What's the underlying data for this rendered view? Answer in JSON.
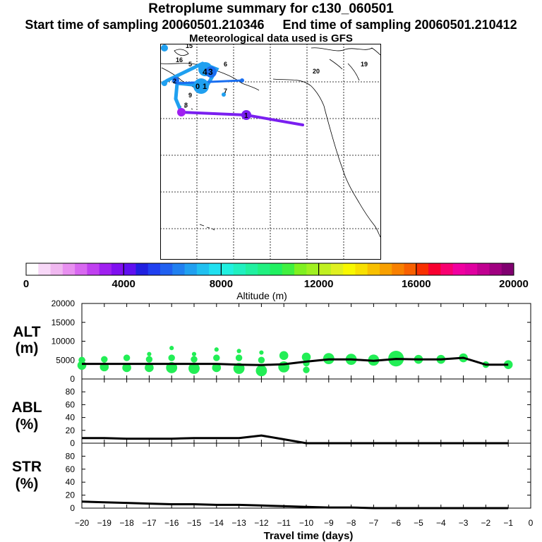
{
  "header": {
    "title": "Retroplume summary for c130_060501",
    "start_label": "Start time of sampling 20060501.210346",
    "end_label": "End time of sampling 20060501.210412",
    "met_label": "Meteorological data used is GFS"
  },
  "map": {
    "plume_labels": [
      "15",
      "16",
      "5",
      "6",
      "4",
      "3",
      "1",
      "2",
      "0",
      "7",
      "8",
      "9",
      "20",
      "19",
      "1"
    ],
    "line_colors": {
      "purple": "#7a1ff0",
      "blue": "#1a6ff0",
      "lightblue": "#1fa0f0"
    }
  },
  "colorbar": {
    "colors": [
      "#ffffff",
      "#f8d8f8",
      "#f0b8f0",
      "#e890f0",
      "#d868f0",
      "#c040f0",
      "#a020f0",
      "#8010f0",
      "#6010f0",
      "#2020e0",
      "#2040f0",
      "#2060f0",
      "#2080f0",
      "#20a0f0",
      "#20c0f0",
      "#20e0f0",
      "#20f0e0",
      "#20f0c0",
      "#20f0a0",
      "#20f080",
      "#20f060",
      "#40f040",
      "#80f020",
      "#a0f020",
      "#c0f020",
      "#e0f020",
      "#f8f800",
      "#f8e000",
      "#f8c000",
      "#f8a000",
      "#f88000",
      "#f86000",
      "#f83000",
      "#f80030",
      "#f80070",
      "#f000a0",
      "#e000a0",
      "#c00090",
      "#a00080",
      "#800070"
    ],
    "tick_labels": [
      "0",
      "4000",
      "8000",
      "12000",
      "16000",
      "20000"
    ],
    "xlabel": "Altitude (m)",
    "range": [
      0,
      20000
    ]
  },
  "chart_data": [
    {
      "type": "line",
      "panel": "alt",
      "title": "ALT (m)",
      "ylabel_line1": "ALT",
      "ylabel_line2": "(m)",
      "x": [
        -20,
        -19,
        -18,
        -17,
        -16,
        -15,
        -14,
        -13,
        -12,
        -11,
        -10,
        -9,
        -8,
        -7,
        -6,
        -5,
        -4,
        -3,
        -2,
        -1
      ],
      "values": [
        4000,
        4000,
        4000,
        4000,
        4000,
        4000,
        4000,
        3800,
        3700,
        3900,
        4600,
        5200,
        5200,
        4800,
        5300,
        5200,
        5200,
        5600,
        3800,
        3800
      ],
      "ylim": [
        0,
        20000
      ],
      "yticks": [
        0,
        5000,
        10000,
        15000,
        20000
      ],
      "plume_points": [
        {
          "x": -20,
          "y": 5000,
          "s": 2
        },
        {
          "x": -20,
          "y": 3600,
          "s": 3
        },
        {
          "x": -19,
          "y": 5200,
          "s": 2
        },
        {
          "x": -19,
          "y": 3200,
          "s": 3
        },
        {
          "x": -18,
          "y": 5600,
          "s": 2
        },
        {
          "x": -18,
          "y": 3000,
          "s": 3
        },
        {
          "x": -17,
          "y": 6600,
          "s": 1
        },
        {
          "x": -17,
          "y": 5200,
          "s": 2
        },
        {
          "x": -17,
          "y": 3000,
          "s": 3
        },
        {
          "x": -16,
          "y": 8200,
          "s": 1
        },
        {
          "x": -16,
          "y": 5600,
          "s": 2
        },
        {
          "x": -16,
          "y": 3000,
          "s": 4
        },
        {
          "x": -15,
          "y": 6600,
          "s": 1
        },
        {
          "x": -15,
          "y": 5200,
          "s": 2
        },
        {
          "x": -15,
          "y": 2800,
          "s": 4
        },
        {
          "x": -14,
          "y": 7800,
          "s": 1
        },
        {
          "x": -14,
          "y": 5600,
          "s": 2
        },
        {
          "x": -14,
          "y": 3000,
          "s": 3
        },
        {
          "x": -13,
          "y": 7400,
          "s": 1
        },
        {
          "x": -13,
          "y": 5600,
          "s": 2
        },
        {
          "x": -13,
          "y": 2800,
          "s": 4
        },
        {
          "x": -12,
          "y": 7000,
          "s": 1
        },
        {
          "x": -12,
          "y": 5000,
          "s": 2
        },
        {
          "x": -12,
          "y": 2200,
          "s": 4
        },
        {
          "x": -11,
          "y": 6200,
          "s": 3
        },
        {
          "x": -11,
          "y": 3200,
          "s": 4
        },
        {
          "x": -10,
          "y": 5800,
          "s": 3
        },
        {
          "x": -10,
          "y": 4200,
          "s": 2
        },
        {
          "x": -10,
          "y": 2400,
          "s": 2
        },
        {
          "x": -9,
          "y": 5400,
          "s": 4
        },
        {
          "x": -8,
          "y": 5200,
          "s": 4
        },
        {
          "x": -7,
          "y": 5000,
          "s": 4
        },
        {
          "x": -6,
          "y": 5400,
          "s": 6
        },
        {
          "x": -5,
          "y": 5200,
          "s": 3
        },
        {
          "x": -4,
          "y": 5200,
          "s": 3
        },
        {
          "x": -3,
          "y": 5600,
          "s": 3
        },
        {
          "x": -2,
          "y": 3800,
          "s": 2
        },
        {
          "x": -1,
          "y": 3800,
          "s": 3
        }
      ]
    },
    {
      "type": "line",
      "panel": "abl",
      "title": "ABL (%)",
      "ylabel_line1": "ABL",
      "ylabel_line2": "(%)",
      "x": [
        -20,
        -19,
        -18,
        -17,
        -16,
        -15,
        -14,
        -13,
        -12,
        -11,
        -10,
        -9,
        -8,
        -7,
        -6,
        -5,
        -4,
        -3,
        -2,
        -1
      ],
      "values": [
        8,
        8,
        7,
        7,
        7,
        8,
        8,
        8,
        12,
        6,
        0,
        0,
        0,
        0,
        0,
        0,
        0,
        0,
        0,
        0
      ],
      "ylim": [
        0,
        100
      ],
      "yticks": [
        0,
        20,
        40,
        60,
        80
      ]
    },
    {
      "type": "line",
      "panel": "str",
      "title": "STR (%)",
      "ylabel_line1": "STR",
      "ylabel_line2": "(%)",
      "x": [
        -20,
        -19,
        -18,
        -17,
        -16,
        -15,
        -14,
        -13,
        -12,
        -11,
        -10,
        -9,
        -8,
        -7,
        -6,
        -5,
        -4,
        -3,
        -2,
        -1
      ],
      "values": [
        10,
        9,
        8,
        7,
        6,
        6,
        5,
        5,
        4,
        3,
        2,
        1,
        1,
        0,
        0,
        0,
        0,
        0,
        0,
        0
      ],
      "ylim": [
        0,
        100
      ],
      "yticks": [
        0,
        20,
        40,
        60,
        80
      ]
    }
  ],
  "xaxis": {
    "xlabel": "Travel time (days)",
    "ticks": [
      -20,
      -19,
      -18,
      -17,
      -16,
      -15,
      -14,
      -13,
      -12,
      -11,
      -10,
      -9,
      -8,
      -7,
      -6,
      -5,
      -4,
      -3,
      -2,
      -1,
      0
    ],
    "tick_labels": [
      "−20",
      "−19",
      "−18",
      "−17",
      "−16",
      "−15",
      "−14",
      "−13",
      "−12",
      "−11",
      "−10",
      "−9",
      "−8",
      "−7",
      "−6",
      "−5",
      "−4",
      "−3",
      "−2",
      "−1",
      "0"
    ]
  },
  "colors": {
    "plume_green": "#22ee55",
    "line": "#000000"
  }
}
